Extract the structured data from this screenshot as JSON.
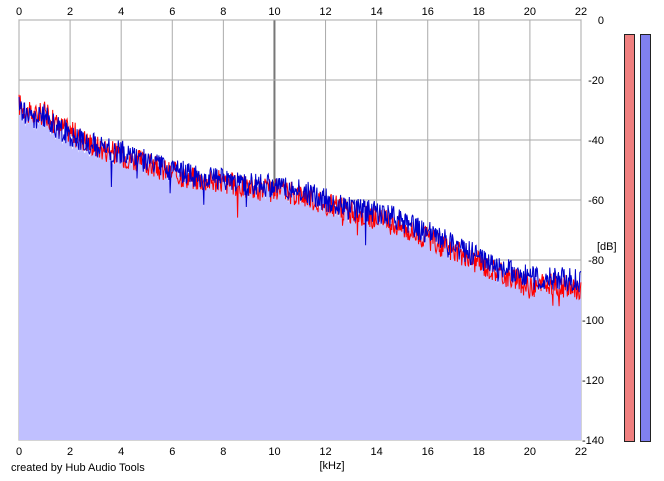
{
  "chart_data": {
    "type": "area",
    "xlabel": "[kHz]",
    "ylabel": "[dB]",
    "xlim": [
      0,
      22
    ],
    "ylim": [
      -140,
      0
    ],
    "x_ticks": [
      "0",
      "2",
      "4",
      "6",
      "8",
      "10",
      "12",
      "14",
      "16",
      "18",
      "20",
      "22"
    ],
    "y_ticks": [
      "0",
      "-20",
      "-40",
      "-60",
      "-80",
      "-100",
      "-120",
      "-140"
    ],
    "grid": true,
    "series": [
      {
        "color": "#ff0000",
        "x": [
          0.0,
          0.5,
          1.0,
          1.5,
          2.0,
          3.0,
          4.0,
          5.0,
          6.0,
          7.0,
          8.0,
          9.0,
          10.0,
          11.0,
          12.0,
          13.0,
          14.0,
          15.0,
          16.0,
          17.0,
          18.0,
          19.0,
          20.0,
          21.0,
          22.0
        ],
        "values": [
          -28,
          -32,
          -31,
          -35,
          -37,
          -42,
          -45,
          -48,
          -51,
          -53,
          -54,
          -56,
          -57,
          -58,
          -61,
          -64,
          -66,
          -69,
          -73,
          -77,
          -81,
          -85,
          -89,
          -88,
          -90
        ]
      },
      {
        "color": "#0000cc",
        "x": [
          0.0,
          0.5,
          1.0,
          1.5,
          2.0,
          3.0,
          4.0,
          5.0,
          6.0,
          7.0,
          8.0,
          9.0,
          10.0,
          11.0,
          12.0,
          13.0,
          14.0,
          15.0,
          16.0,
          17.0,
          18.0,
          19.0,
          20.0,
          21.0,
          22.0
        ],
        "values": [
          -29,
          -33,
          -32,
          -36,
          -38,
          -42,
          -44,
          -47,
          -50,
          -52,
          -53,
          -55,
          -55,
          -57,
          -60,
          -63,
          -64,
          -67,
          -71,
          -75,
          -79,
          -83,
          -86,
          -86,
          -87
        ]
      }
    ],
    "fill_color": "#c0c0ff"
  },
  "footer": {
    "credit": "created by Hub Audio Tools"
  },
  "level_meters": [
    {
      "color": "#f08080"
    },
    {
      "color": "#8080f0"
    }
  ]
}
